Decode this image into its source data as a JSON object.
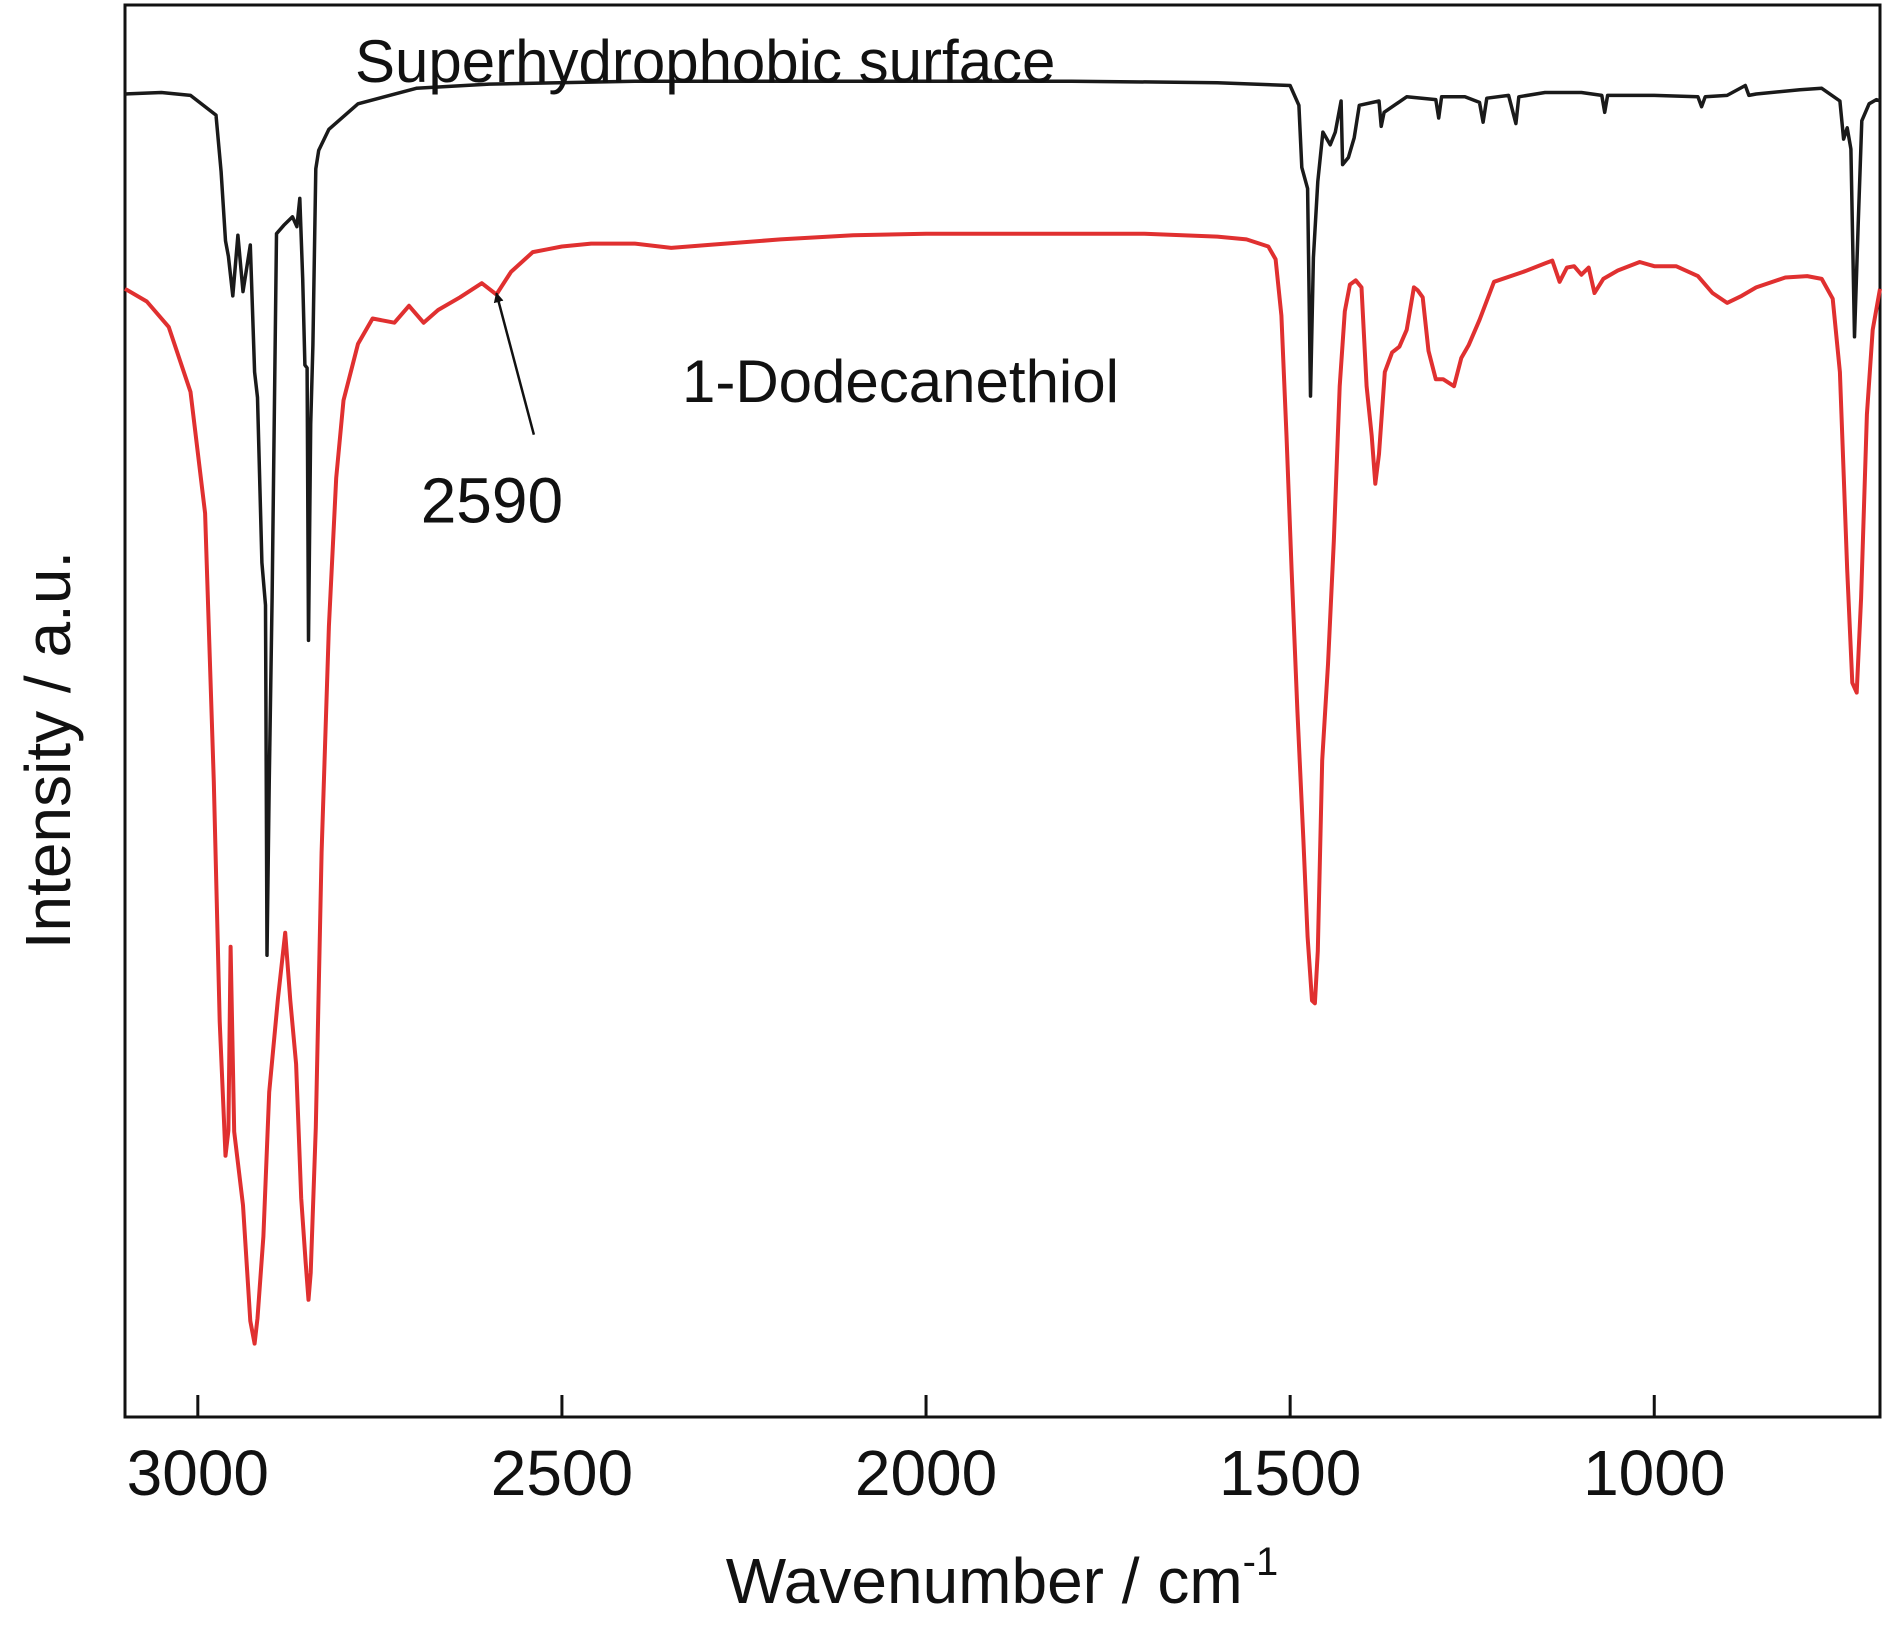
{
  "chart_data": {
    "type": "line",
    "xlabel": "Wavenumber / cm",
    "xlabel_superscript": "-1",
    "ylabel": "Intensity / a.u.",
    "xlim": [
      3100,
      690
    ],
    "ylim": [
      0,
      100
    ],
    "x_reversed": true,
    "y_ticks_shown": false,
    "grid": false,
    "x_ticks": [
      3000,
      2500,
      2000,
      1500,
      1000
    ],
    "x_tick_labels": [
      "3000",
      "2500",
      "2000",
      "1500",
      "1000"
    ],
    "series": [
      {
        "name": "Superhydrophobic surface",
        "color": "#1a1a1a",
        "points": [
          [
            3100,
            93.7
          ],
          [
            3050,
            93.8
          ],
          [
            3010,
            93.6
          ],
          [
            2975,
            92.2
          ],
          [
            2968,
            88.2
          ],
          [
            2962,
            83.3
          ],
          [
            2958,
            82.2
          ],
          [
            2952,
            79.4
          ],
          [
            2945,
            83.7
          ],
          [
            2938,
            79.7
          ],
          [
            2928,
            83.0
          ],
          [
            2922,
            74.0
          ],
          [
            2918,
            72.2
          ],
          [
            2912,
            60.5
          ],
          [
            2907,
            57.5
          ],
          [
            2905,
            32.7
          ],
          [
            2902,
            44.8
          ],
          [
            2898,
            58.0
          ],
          [
            2892,
            83.8
          ],
          [
            2882,
            84.4
          ],
          [
            2870,
            85.0
          ],
          [
            2864,
            84.3
          ],
          [
            2860,
            86.3
          ],
          [
            2856,
            80.6
          ],
          [
            2853,
            74.5
          ],
          [
            2850,
            74.3
          ],
          [
            2848,
            55.0
          ],
          [
            2845,
            70.3
          ],
          [
            2842,
            75.9
          ],
          [
            2838,
            88.4
          ],
          [
            2834,
            89.7
          ],
          [
            2820,
            91.2
          ],
          [
            2780,
            93.0
          ],
          [
            2700,
            94.1
          ],
          [
            2600,
            94.4
          ],
          [
            2400,
            94.6
          ],
          [
            2200,
            94.6
          ],
          [
            2000,
            94.6
          ],
          [
            1800,
            94.6
          ],
          [
            1600,
            94.5
          ],
          [
            1500,
            94.3
          ],
          [
            1488,
            92.9
          ],
          [
            1484,
            88.5
          ],
          [
            1476,
            87.0
          ],
          [
            1472,
            72.3
          ],
          [
            1468,
            82.1
          ],
          [
            1462,
            87.5
          ],
          [
            1455,
            91.0
          ],
          [
            1445,
            90.1
          ],
          [
            1438,
            91.0
          ],
          [
            1430,
            93.2
          ],
          [
            1428,
            88.7
          ],
          [
            1420,
            89.2
          ],
          [
            1412,
            90.6
          ],
          [
            1405,
            92.9
          ],
          [
            1378,
            93.2
          ],
          [
            1375,
            91.4
          ],
          [
            1371,
            92.4
          ],
          [
            1340,
            93.5
          ],
          [
            1300,
            93.3
          ],
          [
            1296,
            92.0
          ],
          [
            1292,
            93.5
          ],
          [
            1260,
            93.5
          ],
          [
            1240,
            93.1
          ],
          [
            1235,
            91.7
          ],
          [
            1230,
            93.4
          ],
          [
            1200,
            93.6
          ],
          [
            1190,
            91.6
          ],
          [
            1186,
            93.5
          ],
          [
            1150,
            93.8
          ],
          [
            1100,
            93.8
          ],
          [
            1072,
            93.6
          ],
          [
            1068,
            92.4
          ],
          [
            1064,
            93.6
          ],
          [
            1000,
            93.6
          ],
          [
            940,
            93.5
          ],
          [
            935,
            92.8
          ],
          [
            930,
            93.5
          ],
          [
            900,
            93.6
          ],
          [
            875,
            94.3
          ],
          [
            870,
            93.6
          ],
          [
            860,
            93.7
          ],
          [
            800,
            94.0
          ],
          [
            770,
            94.1
          ],
          [
            745,
            93.2
          ],
          [
            740,
            90.5
          ],
          [
            735,
            91.3
          ],
          [
            730,
            89.8
          ],
          [
            725,
            76.5
          ],
          [
            720,
            84.5
          ],
          [
            715,
            91.8
          ],
          [
            705,
            93.0
          ],
          [
            695,
            93.3
          ],
          [
            690,
            93.2
          ]
        ]
      },
      {
        "name": "1-Dodecanethiol",
        "color": "#e03030",
        "points": [
          [
            3100,
            79.9
          ],
          [
            3070,
            79.0
          ],
          [
            3040,
            77.2
          ],
          [
            3010,
            72.6
          ],
          [
            2990,
            64.0
          ],
          [
            2978,
            45.0
          ],
          [
            2970,
            28.0
          ],
          [
            2962,
            18.5
          ],
          [
            2958,
            20.3
          ],
          [
            2955,
            33.3
          ],
          [
            2950,
            20.2
          ],
          [
            2938,
            15.0
          ],
          [
            2928,
            6.8
          ],
          [
            2922,
            5.2
          ],
          [
            2918,
            7.0
          ],
          [
            2910,
            12.8
          ],
          [
            2902,
            23.0
          ],
          [
            2890,
            29.6
          ],
          [
            2880,
            34.3
          ],
          [
            2873,
            29.5
          ],
          [
            2865,
            25.0
          ],
          [
            2858,
            15.5
          ],
          [
            2852,
            11.0
          ],
          [
            2848,
            8.3
          ],
          [
            2845,
            10.2
          ],
          [
            2838,
            20.5
          ],
          [
            2830,
            40.0
          ],
          [
            2820,
            56.0
          ],
          [
            2810,
            66.5
          ],
          [
            2800,
            72.0
          ],
          [
            2780,
            76.0
          ],
          [
            2760,
            77.8
          ],
          [
            2730,
            77.5
          ],
          [
            2710,
            78.7
          ],
          [
            2690,
            77.5
          ],
          [
            2670,
            78.4
          ],
          [
            2640,
            79.3
          ],
          [
            2610,
            80.3
          ],
          [
            2590,
            79.5
          ],
          [
            2570,
            81.1
          ],
          [
            2540,
            82.5
          ],
          [
            2520,
            82.7
          ],
          [
            2500,
            82.9
          ],
          [
            2460,
            83.1
          ],
          [
            2400,
            83.1
          ],
          [
            2350,
            82.8
          ],
          [
            2300,
            83.0
          ],
          [
            2200,
            83.4
          ],
          [
            2100,
            83.7
          ],
          [
            2000,
            83.8
          ],
          [
            1800,
            83.8
          ],
          [
            1700,
            83.8
          ],
          [
            1600,
            83.6
          ],
          [
            1560,
            83.4
          ],
          [
            1530,
            82.9
          ],
          [
            1520,
            82.0
          ],
          [
            1512,
            78.0
          ],
          [
            1505,
            69.5
          ],
          [
            1498,
            60.0
          ],
          [
            1490,
            50.0
          ],
          [
            1482,
            41.0
          ],
          [
            1476,
            34.0
          ],
          [
            1470,
            29.5
          ],
          [
            1466,
            29.3
          ],
          [
            1462,
            33.0
          ],
          [
            1456,
            46.5
          ],
          [
            1448,
            53.3
          ],
          [
            1440,
            62.0
          ],
          [
            1432,
            73.0
          ],
          [
            1425,
            78.3
          ],
          [
            1418,
            80.2
          ],
          [
            1410,
            80.5
          ],
          [
            1402,
            80.0
          ],
          [
            1395,
            73.0
          ],
          [
            1388,
            69.5
          ],
          [
            1383,
            66.1
          ],
          [
            1378,
            68.2
          ],
          [
            1370,
            74.0
          ],
          [
            1360,
            75.4
          ],
          [
            1350,
            75.8
          ],
          [
            1340,
            77.0
          ],
          [
            1330,
            80.0
          ],
          [
            1325,
            79.8
          ],
          [
            1318,
            79.3
          ],
          [
            1310,
            75.5
          ],
          [
            1300,
            73.5
          ],
          [
            1290,
            73.5
          ],
          [
            1275,
            73.0
          ],
          [
            1265,
            75.0
          ],
          [
            1255,
            75.9
          ],
          [
            1240,
            77.7
          ],
          [
            1220,
            80.4
          ],
          [
            1180,
            81.1
          ],
          [
            1150,
            81.7
          ],
          [
            1140,
            81.9
          ],
          [
            1130,
            80.4
          ],
          [
            1120,
            81.4
          ],
          [
            1110,
            81.5
          ],
          [
            1100,
            80.9
          ],
          [
            1090,
            81.4
          ],
          [
            1082,
            79.6
          ],
          [
            1070,
            80.6
          ],
          [
            1050,
            81.2
          ],
          [
            1020,
            81.8
          ],
          [
            1000,
            81.5
          ],
          [
            970,
            81.5
          ],
          [
            940,
            80.8
          ],
          [
            920,
            79.6
          ],
          [
            900,
            78.9
          ],
          [
            880,
            79.4
          ],
          [
            860,
            80.0
          ],
          [
            820,
            80.7
          ],
          [
            790,
            80.8
          ],
          [
            770,
            80.6
          ],
          [
            755,
            79.2
          ],
          [
            745,
            74.0
          ],
          [
            735,
            60.0
          ],
          [
            728,
            52.0
          ],
          [
            722,
            51.3
          ],
          [
            716,
            58.0
          ],
          [
            708,
            71.0
          ],
          [
            700,
            77.0
          ],
          [
            690,
            79.9
          ]
        ]
      }
    ],
    "annotations": [
      {
        "text": "2590",
        "arrow_to_x": 2590,
        "arrow_to_y": 79.8,
        "text_x": 2555,
        "text_y": 69.0
      }
    ]
  }
}
